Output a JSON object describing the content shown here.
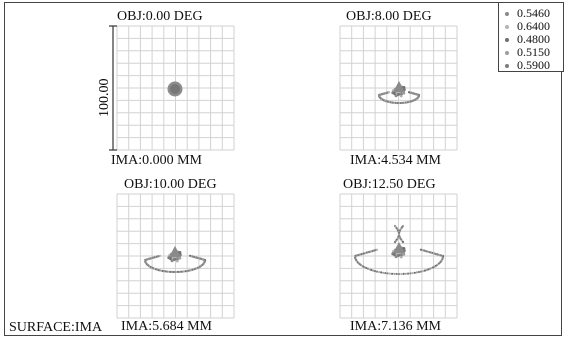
{
  "surface_label": "SURFACE:IMA",
  "scale_label": "100.00",
  "legend": [
    {
      "wavelength": "0.5460",
      "color": "#8a8a8a"
    },
    {
      "wavelength": "0.6400",
      "color": "#b4b4b4"
    },
    {
      "wavelength": "0.4800",
      "color": "#6e6e6e"
    },
    {
      "wavelength": "0.5150",
      "color": "#9d9d9d"
    },
    {
      "wavelength": "0.5900",
      "color": "#7c7c7c"
    }
  ],
  "panels": [
    {
      "obj": "OBJ:0.00 DEG",
      "ima": "IMA:0.000 MM"
    },
    {
      "obj": "OBJ:8.00 DEG",
      "ima": "IMA:4.534 MM"
    },
    {
      "obj": "OBJ:10.00 DEG",
      "ima": "IMA:5.684 MM"
    },
    {
      "obj": "OBJ:12.50 DEG",
      "ima": "IMA:7.136 MM"
    }
  ]
}
